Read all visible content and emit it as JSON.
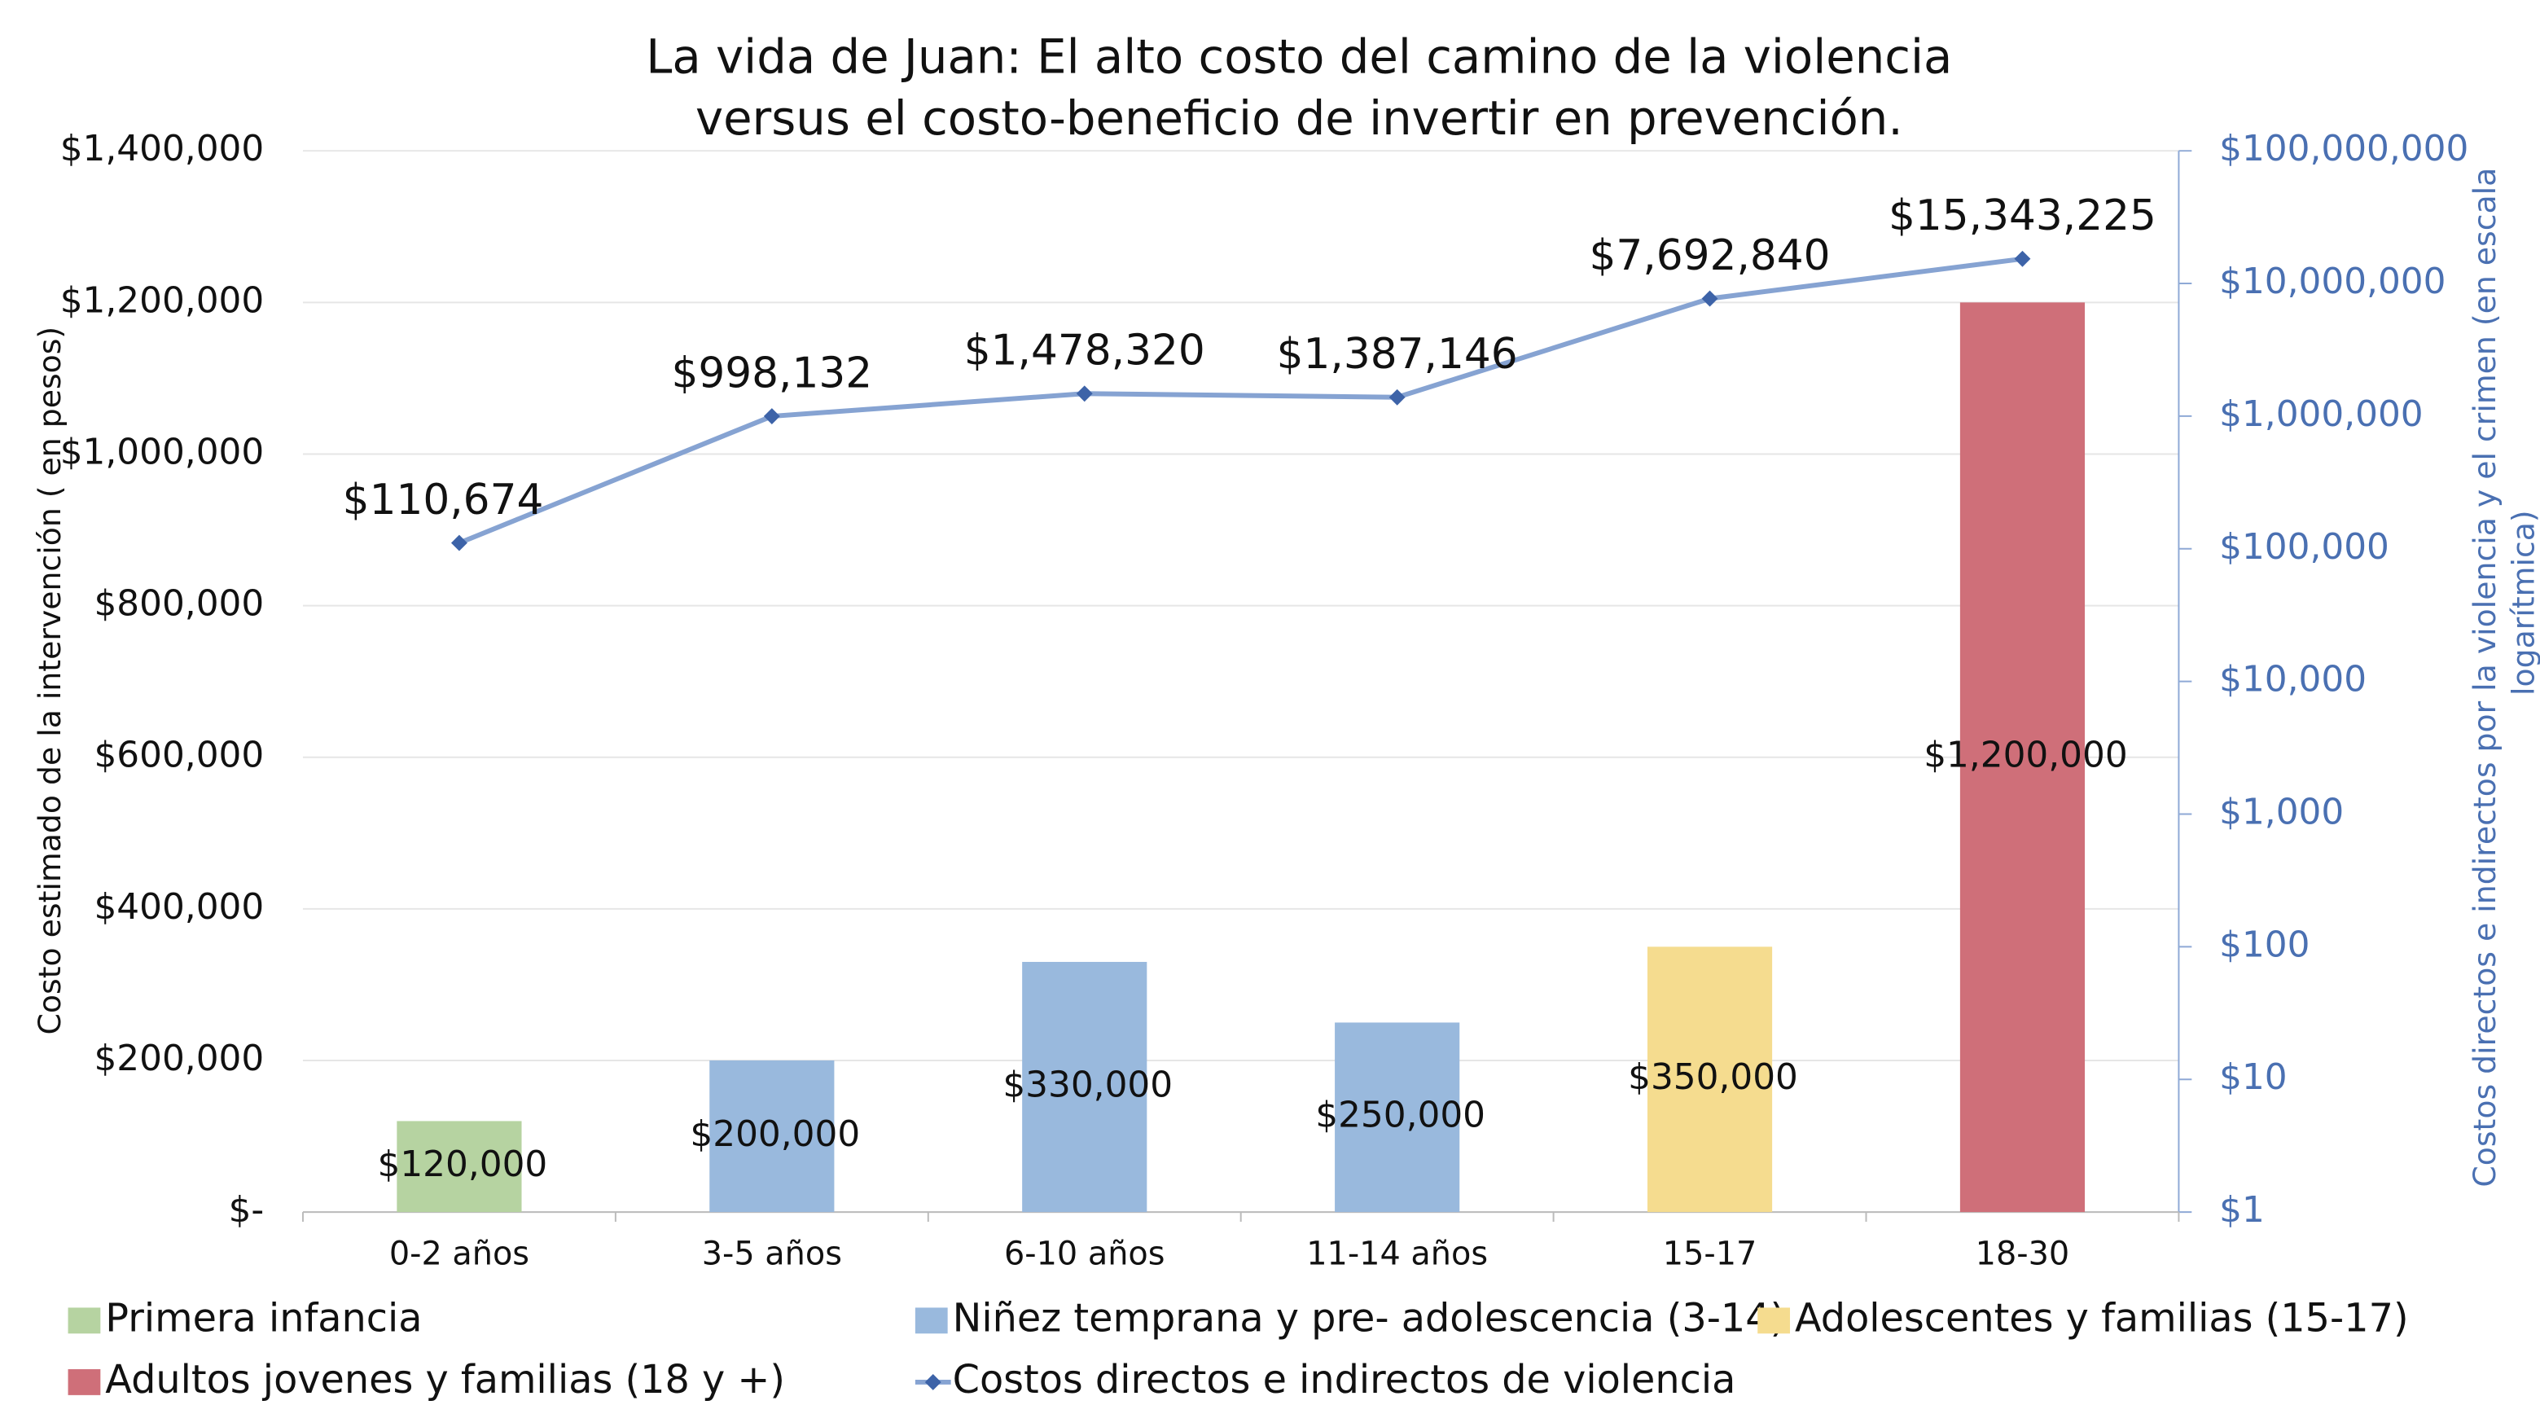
{
  "chart_data": {
    "type": "bar",
    "title": [
      "La vida de Juan: El alto costo del camino de la violencia",
      "versus el costo-beneficio de invertir en prevención."
    ],
    "y_label": "Costo estimado de la intervención  ( en pesos)",
    "y2_label": [
      "Costos directos e indirectos por la violencia y el crimen (en escala",
      "logarítmica)"
    ],
    "categories": [
      "0-2 años",
      "3-5 años",
      "6-10 años",
      "11-14 años",
      "15-17",
      "18-30"
    ],
    "series": [
      {
        "name": "Primera infancia",
        "color": "#b6d3a1",
        "values": [
          120000,
          null,
          null,
          null,
          null,
          null
        ],
        "value_labels": [
          "$120,000",
          null,
          null,
          null,
          null,
          null
        ]
      },
      {
        "name": "Niñez temprana y pre- adolescencia (3-14)",
        "color": "#99b9dd",
        "values": [
          null,
          200000,
          330000,
          250000,
          null,
          null
        ],
        "value_labels": [
          null,
          "$200,000",
          "$330,000",
          "$250,000",
          null,
          null
        ]
      },
      {
        "name": "Adolescentes y familias (15-17)",
        "color": "#f5dc8f",
        "values": [
          null,
          null,
          null,
          null,
          350000,
          null
        ],
        "value_labels": [
          null,
          null,
          null,
          null,
          "$350,000",
          null
        ]
      },
      {
        "name": "Adultos jovenes y familias (18 y +)",
        "color": "#cf6f79",
        "values": [
          null,
          null,
          null,
          null,
          null,
          1200000
        ],
        "value_labels": [
          null,
          null,
          null,
          null,
          null,
          "$1,200,000"
        ]
      },
      {
        "name": "Costos directos e indirectos de violencia",
        "type": "line",
        "axis": "y2",
        "color": "#86a3d2",
        "marker_color": "#3d63a8",
        "values": [
          110674,
          998132,
          1478320,
          1387146,
          7692840,
          15343225
        ],
        "value_labels": [
          "$110,674",
          "$998,132",
          "$1,478,320",
          "$1,387,146",
          "$7,692,840",
          "$15,343,225"
        ]
      }
    ],
    "ylim": [
      0,
      1400000
    ],
    "yticks": [
      {
        "value": 0,
        "label": "$-"
      },
      {
        "value": 200000,
        "label": "$200,000"
      },
      {
        "value": 400000,
        "label": "$400,000"
      },
      {
        "value": 600000,
        "label": "$600,000"
      },
      {
        "value": 800000,
        "label": "$800,000"
      },
      {
        "value": 1000000,
        "label": "$1,000,000"
      },
      {
        "value": 1200000,
        "label": "$1,200,000"
      },
      {
        "value": 1400000,
        "label": "$1,400,000"
      }
    ],
    "y2lim": [
      1,
      100000000
    ],
    "y2_log": true,
    "y2ticks": [
      {
        "value": 1,
        "label": "$1"
      },
      {
        "value": 10,
        "label": "$10"
      },
      {
        "value": 100,
        "label": "$100"
      },
      {
        "value": 1000,
        "label": "$1,000"
      },
      {
        "value": 10000,
        "label": "$10,000"
      },
      {
        "value": 100000,
        "label": "$100,000"
      },
      {
        "value": 1000000,
        "label": "$1,000,000"
      },
      {
        "value": 10000000,
        "label": "$10,000,000"
      },
      {
        "value": 100000000,
        "label": "$100,000,000"
      }
    ],
    "grid": true
  }
}
